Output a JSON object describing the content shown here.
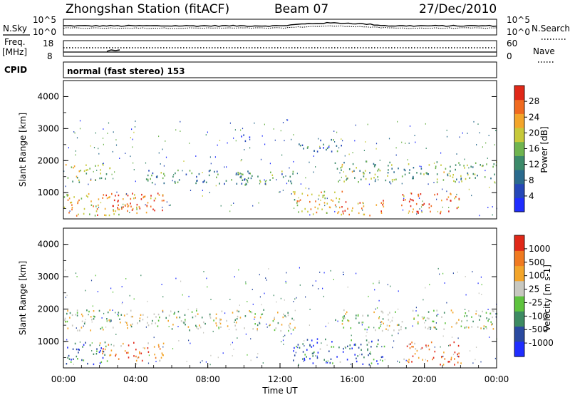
{
  "header": {
    "station": "Zhongshan Station (fitACF)",
    "beam": "Beam 07",
    "date": "27/Dec/2010"
  },
  "noise_panel": {
    "left_label": "N.Sky",
    "right_label": "N.Search",
    "left_ticks": [
      "10^5",
      "10^0"
    ],
    "right_ticks": [
      "10^5",
      "10^0"
    ]
  },
  "freq_panel": {
    "left_label_1": "Freq.",
    "left_label_2": "[MHz]",
    "right_label": "Nave",
    "left_ticks": [
      "18",
      "8"
    ],
    "right_ticks": [
      "60",
      "0"
    ]
  },
  "cpid": {
    "label": "CPID",
    "value": "normal (fast stereo) 153"
  },
  "x_axis": {
    "title": "Time UT",
    "ticks": [
      "00:00",
      "04:00",
      "08:00",
      "12:00",
      "16:00",
      "20:00",
      "00:00"
    ]
  },
  "chart_data": [
    {
      "type": "heatmap",
      "title": "Power",
      "ylabel": "Slant Range [km]",
      "xlabel": "Time UT",
      "ylim": [
        180,
        4500
      ],
      "xlim_hours": [
        0,
        24
      ],
      "y_ticks": [
        "4000",
        "3000",
        "2000",
        "1000"
      ],
      "colorbar": {
        "label": "Power [dB]",
        "range": [
          0,
          32
        ],
        "ticks": [
          "28",
          "24",
          "20",
          "16",
          "12",
          "8",
          "4"
        ],
        "colors": [
          "#1f2dff",
          "#2547b8",
          "#2a6a8d",
          "#3c8a6a",
          "#6fb44f",
          "#c7c93a",
          "#f3a52a",
          "#f06a1f",
          "#e02818"
        ]
      },
      "bands": [
        {
          "t0": 0.0,
          "t1": 2.6,
          "r0": 1350,
          "r1": 1900,
          "level": 0.55
        },
        {
          "t0": 0.0,
          "t1": 4.2,
          "r0": 300,
          "r1": 1000,
          "level": 0.7
        },
        {
          "t0": 2.0,
          "t1": 5.6,
          "r0": 400,
          "r1": 1000,
          "level": 0.85
        },
        {
          "t0": 4.5,
          "t1": 10.5,
          "r0": 1300,
          "r1": 1750,
          "level": 0.35
        },
        {
          "t0": 9.5,
          "t1": 12.8,
          "r0": 1250,
          "r1": 1700,
          "level": 0.4
        },
        {
          "t0": 12.7,
          "t1": 15.5,
          "r0": 350,
          "r1": 1100,
          "level": 0.65
        },
        {
          "t0": 15.2,
          "t1": 17.8,
          "r0": 300,
          "r1": 800,
          "level": 0.8
        },
        {
          "t0": 15.0,
          "t1": 24.0,
          "r0": 1350,
          "r1": 2000,
          "level": 0.45
        },
        {
          "t0": 18.7,
          "t1": 22.0,
          "r0": 350,
          "r1": 1000,
          "level": 0.85
        },
        {
          "t0": 9.6,
          "t1": 10.4,
          "r0": 2600,
          "r1": 2850,
          "level": 0.3
        },
        {
          "t0": 13.0,
          "t1": 15.5,
          "r0": 2300,
          "r1": 2700,
          "level": 0.25
        }
      ]
    },
    {
      "type": "heatmap",
      "title": "Velocity",
      "ylabel": "Slant Range [km]",
      "xlabel": "Time UT",
      "ylim": [
        180,
        4500
      ],
      "xlim_hours": [
        0,
        24
      ],
      "y_ticks": [
        "4000",
        "3000",
        "2000",
        "1000"
      ],
      "colorbar": {
        "label": "Velocity [m s-1]",
        "ticks": [
          "1000",
          "500",
          "100",
          "25",
          "-25",
          "-100",
          "-500",
          "-1000"
        ],
        "colors": [
          "#1f2dff",
          "#2a4aa0",
          "#3d8a62",
          "#5ec33e",
          "#c8c8c0",
          "#f3a52a",
          "#f07a20",
          "#e02818"
        ]
      },
      "bands": [
        {
          "t0": 0.0,
          "t1": 12.8,
          "r0": 1350,
          "r1": 2000,
          "level": 0.5
        },
        {
          "t0": 15.0,
          "t1": 24.0,
          "r0": 1350,
          "r1": 2000,
          "level": 0.5
        },
        {
          "t0": 0.0,
          "t1": 2.5,
          "r0": 300,
          "r1": 1000,
          "level": 0.2
        },
        {
          "t0": 2.0,
          "t1": 5.6,
          "r0": 400,
          "r1": 1000,
          "level": 0.8
        },
        {
          "t0": 12.7,
          "t1": 17.8,
          "r0": 300,
          "r1": 1100,
          "level": 0.25
        },
        {
          "t0": 18.7,
          "t1": 22.0,
          "r0": 300,
          "r1": 1000,
          "level": 0.82
        }
      ]
    }
  ]
}
